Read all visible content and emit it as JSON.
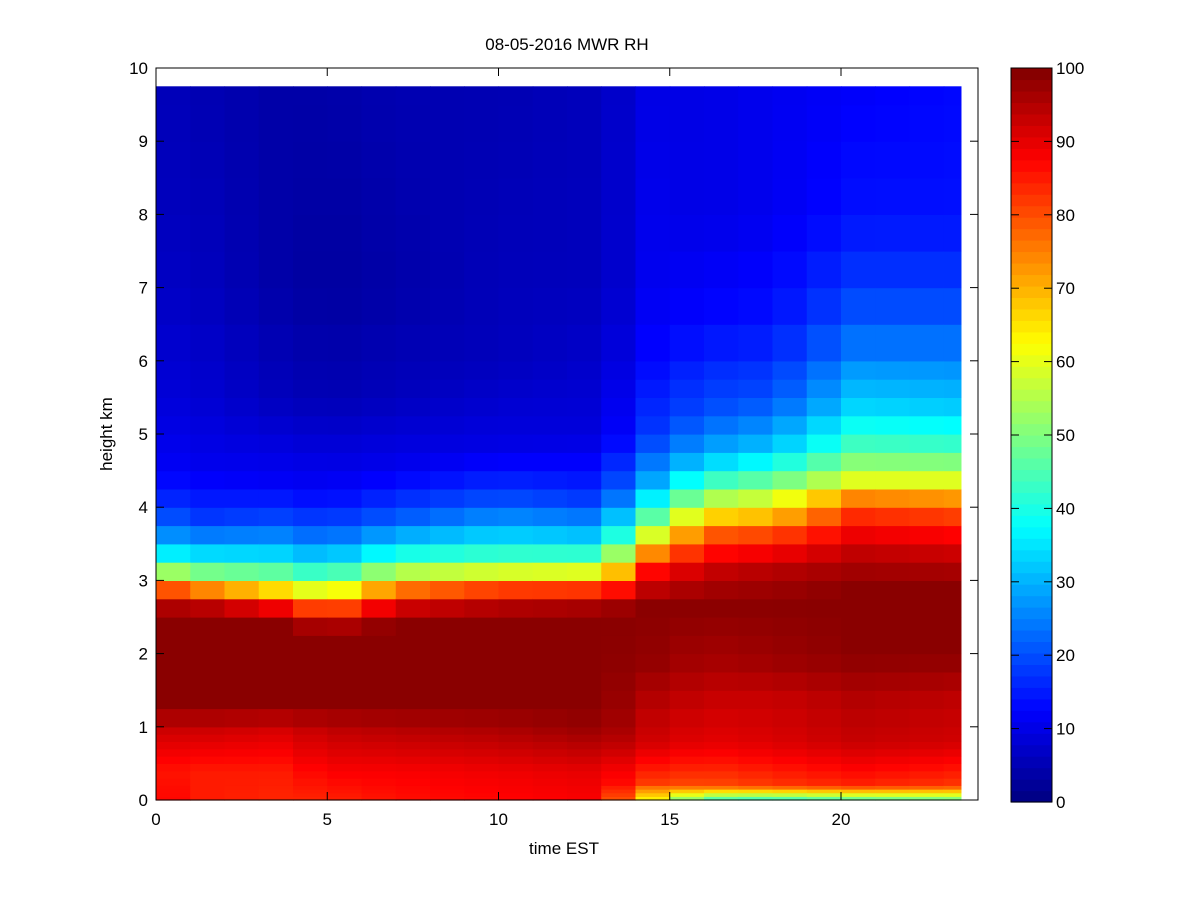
{
  "chart_data": {
    "type": "heatmap",
    "title": "08-05-2016 MWR RH",
    "xlabel": "time EST",
    "ylabel": "height km",
    "xlim": [
      0,
      24
    ],
    "ylim": [
      0,
      10
    ],
    "x_ticks": [
      0,
      5,
      10,
      15,
      20
    ],
    "y_ticks": [
      0,
      1,
      2,
      3,
      4,
      5,
      6,
      7,
      8,
      9,
      10
    ],
    "colorbar": {
      "range": [
        0,
        100
      ],
      "ticks": [
        0,
        10,
        20,
        30,
        40,
        50,
        60,
        70,
        80,
        90,
        100
      ],
      "colormap": "jet"
    },
    "grid": false,
    "x": [
      0.5,
      1.5,
      2.5,
      3.5,
      4.5,
      5.5,
      6.5,
      7.5,
      8.5,
      9.5,
      10.5,
      11.5,
      12.5,
      13.5,
      14.5,
      15.5,
      16.5,
      17.5,
      18.5,
      19.5,
      20.5,
      21.5,
      22.5,
      23.5
    ],
    "y": [
      0,
      0.05,
      0.1,
      0.15,
      0.2,
      0.3,
      0.4,
      0.5,
      0.6,
      0.7,
      0.8,
      0.9,
      1,
      1.25,
      1.5,
      1.75,
      2,
      2.25,
      2.5,
      2.75,
      3,
      3.25,
      3.5,
      3.75,
      4,
      4.25,
      4.5,
      4.75,
      5,
      5.25,
      5.5,
      5.75,
      6,
      6.5,
      7,
      7.5,
      8,
      8.5,
      9,
      9.5
    ],
    "profiles": [
      {
        "t": 0,
        "base": [
          [
            0,
            88
          ],
          [
            0.4,
            86
          ],
          [
            1.0,
            93
          ],
          [
            1.3,
            99
          ],
          [
            2.5,
            99
          ],
          [
            2.8,
            92
          ],
          [
            3.0,
            65
          ],
          [
            3.3,
            40
          ],
          [
            3.6,
            28
          ],
          [
            4.0,
            18
          ],
          [
            4.5,
            12
          ],
          [
            5.5,
            9
          ],
          [
            7.0,
            7
          ],
          [
            8.5,
            6
          ],
          [
            9.75,
            6
          ]
        ]
      },
      {
        "t": 1.5,
        "base": [
          [
            0,
            85
          ],
          [
            0.4,
            85
          ],
          [
            1.0,
            93
          ],
          [
            1.3,
            99
          ],
          [
            2.5,
            99
          ],
          [
            2.75,
            90
          ],
          [
            2.95,
            65
          ],
          [
            3.2,
            42
          ],
          [
            3.5,
            28
          ],
          [
            3.9,
            17
          ],
          [
            4.5,
            11
          ],
          [
            5.5,
            8
          ],
          [
            7.0,
            6
          ],
          [
            9.75,
            5
          ]
        ]
      },
      {
        "t": 3.5,
        "base": [
          [
            0,
            84
          ],
          [
            0.4,
            85
          ],
          [
            1.0,
            92
          ],
          [
            1.3,
            99
          ],
          [
            2.4,
            99
          ],
          [
            2.65,
            88
          ],
          [
            2.85,
            68
          ],
          [
            3.1,
            48
          ],
          [
            3.4,
            32
          ],
          [
            3.8,
            20
          ],
          [
            4.3,
            12
          ],
          [
            5.5,
            6
          ],
          [
            7.0,
            4
          ],
          [
            9.75,
            4
          ]
        ]
      },
      {
        "t": 5,
        "base": [
          [
            0,
            84
          ],
          [
            0.4,
            88
          ],
          [
            1.0,
            94
          ],
          [
            1.3,
            99
          ],
          [
            2.3,
            99
          ],
          [
            2.55,
            85
          ],
          [
            2.75,
            66
          ],
          [
            3.0,
            48
          ],
          [
            3.3,
            32
          ],
          [
            3.7,
            20
          ],
          [
            4.2,
            12
          ],
          [
            5.5,
            5
          ],
          [
            7.0,
            3
          ],
          [
            9.75,
            4
          ]
        ]
      },
      {
        "t": 7,
        "base": [
          [
            0,
            86
          ],
          [
            0.4,
            88
          ],
          [
            1.0,
            95
          ],
          [
            1.3,
            99
          ],
          [
            2.4,
            99
          ],
          [
            2.7,
            90
          ],
          [
            2.95,
            70
          ],
          [
            3.2,
            48
          ],
          [
            3.5,
            33
          ],
          [
            3.9,
            20
          ],
          [
            4.5,
            11
          ],
          [
            5.5,
            6
          ],
          [
            7.0,
            4
          ],
          [
            9.75,
            5
          ]
        ]
      },
      {
        "t": 10,
        "base": [
          [
            0,
            87
          ],
          [
            0.4,
            89
          ],
          [
            1.0,
            96
          ],
          [
            1.3,
            99
          ],
          [
            2.5,
            99
          ],
          [
            2.8,
            90
          ],
          [
            3.0,
            68
          ],
          [
            3.3,
            45
          ],
          [
            3.7,
            30
          ],
          [
            4.2,
            18
          ],
          [
            4.8,
            10
          ],
          [
            6.0,
            6
          ],
          [
            9.75,
            5
          ]
        ]
      },
      {
        "t": 13,
        "base": [
          [
            0,
            88
          ],
          [
            0.4,
            90
          ],
          [
            1.0,
            98
          ],
          [
            1.3,
            99
          ],
          [
            2.55,
            99
          ],
          [
            2.8,
            90
          ],
          [
            3.0,
            70
          ],
          [
            3.3,
            45
          ],
          [
            3.7,
            28
          ],
          [
            4.2,
            16
          ],
          [
            5.0,
            9
          ],
          [
            7.0,
            6
          ],
          [
            9.75,
            6
          ]
        ]
      },
      {
        "t": 14.5,
        "base": [
          [
            0,
            62
          ],
          [
            0.25,
            82
          ],
          [
            0.8,
            92
          ],
          [
            1.4,
            95
          ],
          [
            1.9,
            98
          ],
          [
            2.7,
            99
          ],
          [
            3.2,
            85
          ],
          [
            3.6,
            60
          ],
          [
            4.0,
            40
          ],
          [
            4.4,
            28
          ],
          [
            5.0,
            18
          ],
          [
            6.0,
            13
          ],
          [
            7.0,
            11
          ],
          [
            9.75,
            10
          ]
        ]
      },
      {
        "t": 16,
        "base": [
          [
            0,
            42
          ],
          [
            0.2,
            80
          ],
          [
            0.8,
            90
          ],
          [
            1.4,
            93
          ],
          [
            1.9,
            96
          ],
          [
            2.7,
            99
          ],
          [
            3.2,
            92
          ],
          [
            3.6,
            80
          ],
          [
            3.9,
            65
          ],
          [
            4.3,
            45
          ],
          [
            4.7,
            30
          ],
          [
            5.3,
            20
          ],
          [
            6.5,
            13
          ],
          [
            8.0,
            10
          ],
          [
            9.75,
            10
          ]
        ]
      },
      {
        "t": 18,
        "base": [
          [
            0,
            40
          ],
          [
            0.2,
            82
          ],
          [
            0.8,
            91
          ],
          [
            1.4,
            93
          ],
          [
            1.9,
            97
          ],
          [
            2.7,
            99
          ],
          [
            3.2,
            94
          ],
          [
            3.6,
            82
          ],
          [
            3.9,
            68
          ],
          [
            4.3,
            50
          ],
          [
            4.8,
            32
          ],
          [
            5.5,
            20
          ],
          [
            6.5,
            14
          ],
          [
            8.0,
            11
          ],
          [
            9.75,
            11
          ]
        ]
      },
      {
        "t": 20.5,
        "base": [
          [
            0,
            44
          ],
          [
            0.2,
            84
          ],
          [
            0.8,
            93
          ],
          [
            1.4,
            95
          ],
          [
            2.0,
            99
          ],
          [
            2.9,
            99
          ],
          [
            3.3,
            95
          ],
          [
            3.8,
            86
          ],
          [
            4.1,
            76
          ],
          [
            4.4,
            58
          ],
          [
            4.8,
            45
          ],
          [
            5.4,
            33
          ],
          [
            6.2,
            24
          ],
          [
            7.0,
            18
          ],
          [
            8.0,
            14
          ],
          [
            9.75,
            12
          ]
        ]
      },
      {
        "t": 23.5,
        "base": [
          [
            0,
            46
          ],
          [
            0.2,
            82
          ],
          [
            0.8,
            92
          ],
          [
            1.4,
            94
          ],
          [
            2.0,
            99
          ],
          [
            2.9,
            99
          ],
          [
            3.3,
            94
          ],
          [
            3.8,
            84
          ],
          [
            4.1,
            74
          ],
          [
            4.4,
            58
          ],
          [
            4.8,
            44
          ],
          [
            5.4,
            32
          ],
          [
            6.2,
            24
          ],
          [
            7.0,
            18
          ],
          [
            8.0,
            14
          ],
          [
            9.75,
            13
          ]
        ]
      }
    ]
  }
}
